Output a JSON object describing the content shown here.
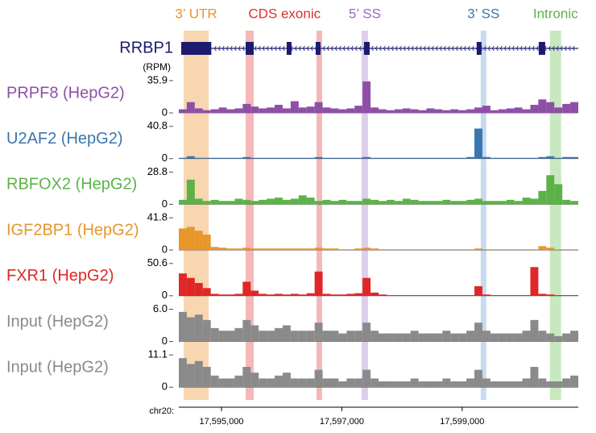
{
  "chart_data": {
    "type": "coverage-tracks",
    "gene": {
      "name": "RRBP1",
      "color": "#1b1b6f",
      "exons": [
        [
          17594330,
          17594830
        ],
        [
          17595401,
          17595535
        ],
        [
          17596083,
          17596163
        ],
        [
          17596565,
          17596645
        ],
        [
          17597368,
          17597462
        ],
        [
          17599241,
          17599321
        ],
        [
          17600273,
          17600380
        ]
      ]
    },
    "regions": [
      {
        "label": "3’ UTR",
        "color": "#e8952a",
        "fill": "#f5c896",
        "spans": [
          [
            17594371,
            17594786
          ]
        ]
      },
      {
        "label": "CDS exonic",
        "color": "#e02e2e",
        "fill": "#f2a0a0",
        "spans": [
          [
            17595401,
            17595535
          ],
          [
            17596579,
            17596672
          ]
        ]
      },
      {
        "label": "5’ SS",
        "color": "#a463bf",
        "fill": "#d3bde3",
        "spans": [
          [
            17597328,
            17597435
          ]
        ]
      },
      {
        "label": "3’ SS",
        "color": "#3a76b0",
        "fill": "#b4cdea",
        "spans": [
          [
            17599308,
            17599401
          ]
        ]
      },
      {
        "label": "Intronic",
        "color": "#5bb347",
        "fill": "#b5e0a9",
        "spans": [
          [
            17600458,
            17600645
          ]
        ]
      }
    ],
    "y_unit": "(RPM)",
    "xlim": [
      17594290,
      17600930
    ],
    "x_label": "chr20:",
    "xticks": [
      {
        "value": 17595000,
        "label": "17,595,000"
      },
      {
        "value": 17597000,
        "label": "17,597,000"
      },
      {
        "value": 17599000,
        "label": "17,599,000"
      }
    ],
    "tracks": [
      {
        "name": "PRPF8 (HepG2)",
        "color": "#8e4fa8",
        "ylim": [
          0,
          35.9
        ],
        "yticks": [
          0,
          35.9
        ],
        "values": [
          4,
          12,
          5,
          3,
          4,
          6,
          4,
          5,
          10,
          7,
          5,
          6,
          9,
          5,
          13,
          6,
          7,
          12,
          6,
          5,
          4,
          5,
          8,
          35,
          6,
          4,
          3,
          4,
          5,
          4,
          3,
          5,
          4,
          3,
          4,
          3,
          4,
          6,
          8,
          3,
          4,
          5,
          6,
          4,
          9,
          15,
          12,
          6,
          10,
          12
        ]
      },
      {
        "name": "U2AF2 (HepG2)",
        "color": "#3a76b0",
        "ylim": [
          0,
          40.8
        ],
        "yticks": [
          0,
          40.8
        ],
        "values": [
          1,
          3,
          1,
          1,
          1,
          1,
          1,
          1,
          2,
          1,
          1,
          1,
          1,
          1,
          1,
          1,
          1,
          2,
          1,
          1,
          1,
          1,
          1,
          2,
          1,
          1,
          1,
          1,
          1,
          1,
          1,
          1,
          1,
          1,
          1,
          1,
          2,
          38,
          2,
          1,
          1,
          1,
          1,
          1,
          1,
          2,
          3,
          1,
          2,
          2
        ]
      },
      {
        "name": "RBFOX2 (HepG2)",
        "color": "#5bb347",
        "ylim": [
          0,
          28.8
        ],
        "yticks": [
          0,
          28.8
        ],
        "values": [
          4,
          22,
          5,
          3,
          4,
          3,
          3,
          5,
          4,
          3,
          4,
          5,
          6,
          4,
          5,
          8,
          6,
          3,
          4,
          3,
          4,
          3,
          3,
          5,
          4,
          3,
          4,
          3,
          5,
          4,
          3,
          3,
          3,
          4,
          3,
          3,
          4,
          5,
          3,
          3,
          3,
          4,
          3,
          6,
          5,
          12,
          26,
          18,
          4,
          3
        ]
      },
      {
        "name": "IGF2BP1 (HepG2)",
        "color": "#e8952a",
        "ylim": [
          0,
          41.8
        ],
        "yticks": [
          0,
          41.8
        ],
        "values": [
          28,
          30,
          25,
          20,
          4,
          3,
          2,
          2,
          3,
          2,
          2,
          2,
          2,
          2,
          2,
          2,
          2,
          3,
          2,
          2,
          1,
          1,
          2,
          3,
          2,
          1,
          1,
          1,
          1,
          1,
          1,
          1,
          1,
          1,
          1,
          1,
          1,
          2,
          1,
          1,
          1,
          1,
          1,
          1,
          1,
          5,
          3,
          1,
          1,
          1
        ]
      },
      {
        "name": "FXR1 (HepG2)",
        "color": "#e02626",
        "ylim": [
          0,
          50.6
        ],
        "yticks": [
          0,
          50.6
        ],
        "values": [
          35,
          28,
          20,
          12,
          3,
          2,
          2,
          3,
          22,
          8,
          3,
          2,
          3,
          2,
          3,
          2,
          4,
          38,
          3,
          2,
          2,
          3,
          4,
          28,
          5,
          2,
          1,
          1,
          1,
          1,
          1,
          1,
          1,
          1,
          1,
          1,
          1,
          15,
          2,
          1,
          1,
          1,
          1,
          1,
          45,
          3,
          2,
          1,
          1,
          1
        ]
      },
      {
        "name": "Input (HepG2)",
        "color": "#8a8a8a",
        "ylim": [
          0,
          6.0
        ],
        "yticks": [
          0,
          {
            "value": 6.0,
            "label": "6.0"
          }
        ],
        "values": [
          5.5,
          4.5,
          5,
          4,
          2.5,
          2,
          2,
          2.5,
          4,
          3,
          2,
          2,
          2.5,
          3,
          2,
          2,
          2,
          3.5,
          2,
          2,
          1.5,
          2,
          2,
          3.5,
          2,
          1.5,
          1.5,
          1.5,
          1.5,
          2,
          1.5,
          1.5,
          1.5,
          2,
          1.5,
          1.5,
          2,
          3.5,
          2,
          1.5,
          1.5,
          1.5,
          1.5,
          2,
          4,
          2,
          1.5,
          1,
          1.5,
          2
        ]
      },
      {
        "name": "Input (HepG2)",
        "color": "#8a8a8a",
        "ylim": [
          0,
          11.1
        ],
        "yticks": [
          0,
          11.1
        ],
        "values": [
          10,
          8,
          9,
          7,
          4,
          3,
          3,
          4,
          7,
          5,
          3,
          3,
          4,
          5,
          3,
          3,
          3,
          6,
          3,
          3,
          2,
          3,
          3,
          6,
          3,
          2,
          2,
          2,
          2,
          3,
          2,
          2,
          2,
          3,
          2,
          2,
          3,
          6,
          3,
          2,
          2,
          2,
          2,
          3,
          7,
          3,
          2,
          2,
          3,
          4
        ]
      }
    ]
  }
}
